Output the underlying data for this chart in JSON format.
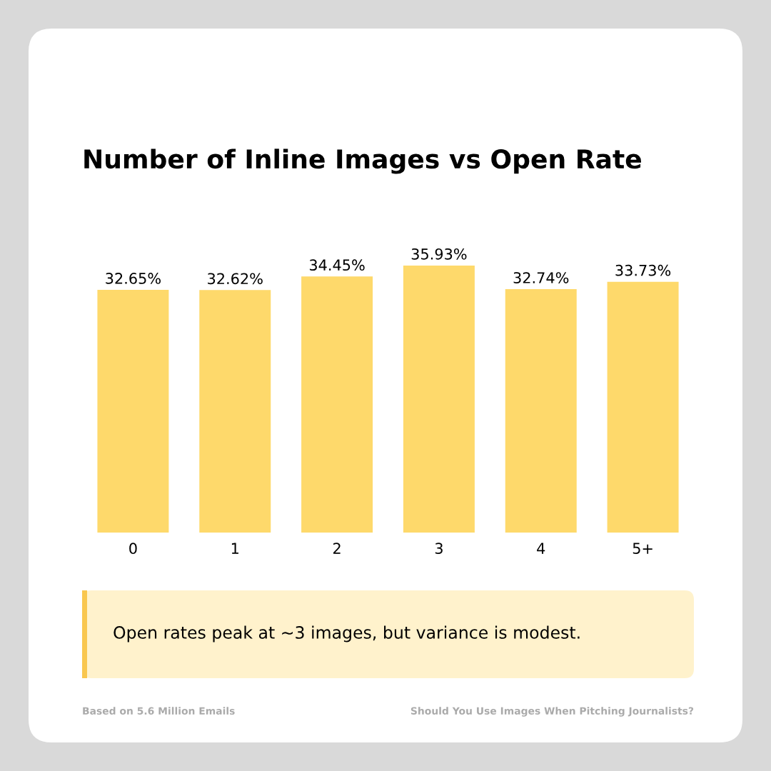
{
  "chart_data": {
    "type": "bar",
    "title": "Number of Inline Images vs Open Rate",
    "categories": [
      "0",
      "1",
      "2",
      "3",
      "4",
      "5+"
    ],
    "values": [
      32.65,
      32.62,
      34.45,
      35.93,
      32.74,
      33.73
    ],
    "color": "#fed96b",
    "value_labels": [
      "32.65%",
      "32.62%",
      "34.45%",
      "35.93%",
      "32.74%",
      "33.73%"
    ],
    "annotations": [
      "Open rates peak at ~3 images, but variance is modest.",
      "Based on 5.6 Million Emails",
      "Should You Use Images When Pitching Journalists?"
    ]
  }
}
